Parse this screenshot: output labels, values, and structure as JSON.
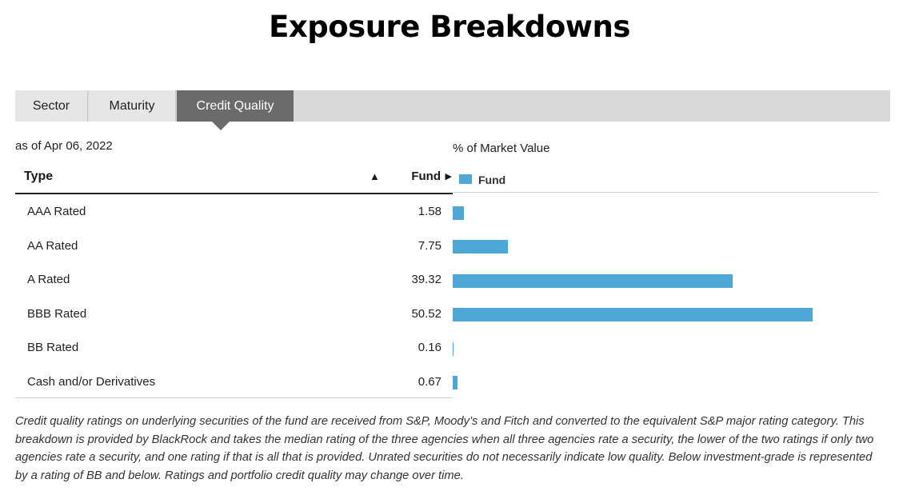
{
  "page": {
    "title": "Exposure Breakdowns"
  },
  "tabs": [
    {
      "label": "Sector",
      "active": false
    },
    {
      "label": "Maturity",
      "active": false
    },
    {
      "label": "Credit Quality",
      "active": true
    }
  ],
  "as_of": "as of Apr 06, 2022",
  "table": {
    "headers": {
      "type": "Type",
      "sort_arrow": "▲",
      "fund": "Fund",
      "fund_arrow": "▶"
    },
    "rows": [
      {
        "type": "AAA Rated",
        "value": "1.58"
      },
      {
        "type": "AA Rated",
        "value": "7.75"
      },
      {
        "type": "A Rated",
        "value": "39.32"
      },
      {
        "type": "BBB Rated",
        "value": "50.52"
      },
      {
        "type": "BB Rated",
        "value": "0.16"
      },
      {
        "type": "Cash and/or Derivatives",
        "value": "0.67"
      }
    ]
  },
  "chart_data": {
    "type": "bar",
    "orientation": "horizontal",
    "title": "% of Market Value",
    "categories": [
      "AAA Rated",
      "AA Rated",
      "A Rated",
      "BBB Rated",
      "BB Rated",
      "Cash and/or Derivatives"
    ],
    "series": [
      {
        "name": "Fund",
        "values": [
          1.58,
          7.75,
          39.32,
          50.52,
          0.16,
          0.67
        ],
        "color": "#4da8d8"
      }
    ],
    "legend": "top-left",
    "grid": false
  },
  "footnote": "Credit quality ratings on underlying securities of the fund are received from S&P, Moody’s and Fitch and converted to the equivalent S&P major rating category. This breakdown is provided by BlackRock and takes the median rating of the three agencies when all three agencies rate a security, the lower of the two ratings if only two agencies rate a security, and one rating if that is all that is provided. Unrated securities do not necessarily indicate low quality. Below investment-grade is represented by a rating of BB and below. Ratings and portfolio credit quality may change over time."
}
